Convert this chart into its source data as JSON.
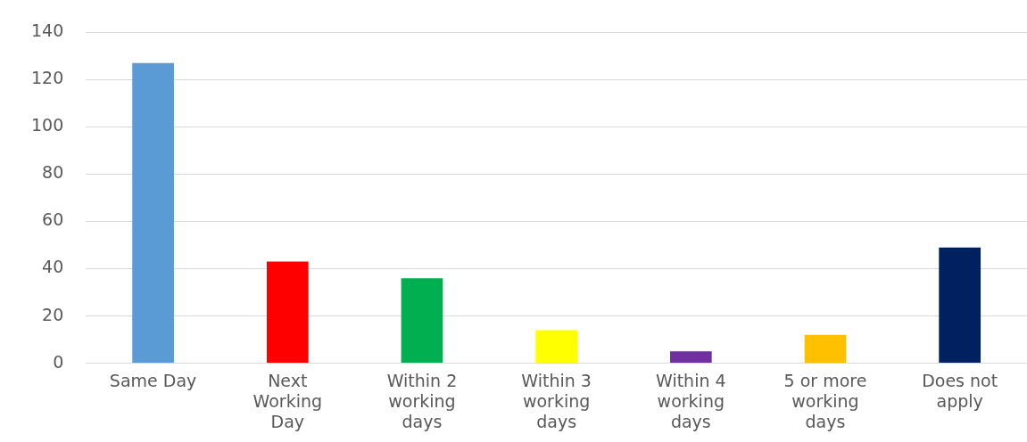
{
  "chart_data": {
    "type": "bar",
    "categories": [
      "Same Day",
      "Next Working Day",
      "Within 2 working days",
      "Within 3 working days",
      "Within 4 working days",
      "5 or more working days",
      "Does not apply"
    ],
    "values": [
      127,
      43,
      36,
      14,
      5,
      12,
      49
    ],
    "colors": [
      "#5b9bd5",
      "#ff0000",
      "#00b050",
      "#ffff00",
      "#7030a0",
      "#ffc000",
      "#002060"
    ],
    "ylim": [
      0,
      140
    ],
    "yticks": [
      0,
      20,
      40,
      60,
      80,
      100,
      120,
      140
    ],
    "grid": "y",
    "legend": false
  }
}
